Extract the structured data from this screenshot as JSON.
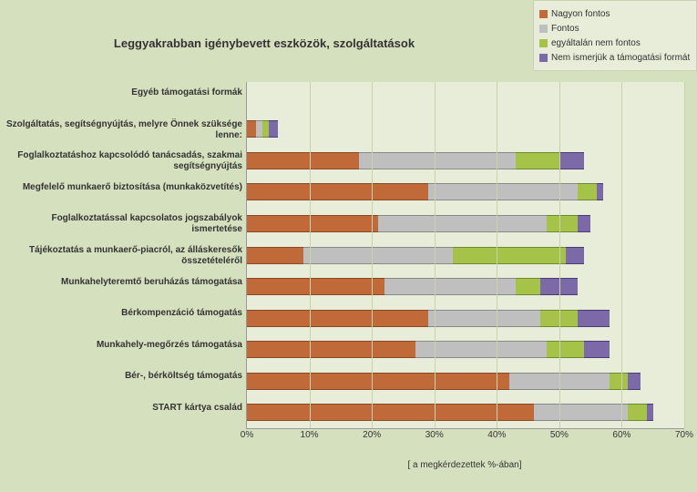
{
  "title": "Leggyakrabban igénybevett eszközök, szolgáltatások",
  "x_axis_title": "[ a megkérdezettek %-ában]",
  "plot": {
    "type": "stacked-bar-horizontal",
    "xlim": [
      0,
      70
    ],
    "xtick_step": 10,
    "xtick_suffix": "%",
    "background_color": "#e7edd9",
    "page_background_color": "#d5e0be",
    "grid_color": "#c8d3ae"
  },
  "series": [
    {
      "key": "nagyon_fontos",
      "label": "Nagyon fontos",
      "color": "#c06a3a"
    },
    {
      "key": "fontos",
      "label": "Fontos",
      "color": "#bfbfbf"
    },
    {
      "key": "nem_fontos",
      "label": "egyáltalán nem fontos",
      "color": "#a5c249"
    },
    {
      "key": "nem_ismerjuk",
      "label": "Nem ismerjük a támogatási formát",
      "color": "#7c6aa8"
    }
  ],
  "categories": [
    {
      "label": "Egyéb támogatási formák",
      "values": [
        0,
        0,
        0,
        0
      ]
    },
    {
      "label": "Szolgáltatás, segítségnyújtás, melyre Önnek szüksége lenne:",
      "values": [
        1.5,
        1.0,
        1.0,
        1.5
      ]
    },
    {
      "label": "Foglalkoztatáshoz kapcsolódó tanácsadás, szakmai segítségnyújtás",
      "values": [
        18,
        25,
        7,
        4
      ]
    },
    {
      "label": "Megfelelő munkaerő biztosítása (munkaközvetítés)",
      "values": [
        29,
        24,
        3,
        1
      ]
    },
    {
      "label": "Foglalkoztatással kapcsolatos jogszabályok ismertetése",
      "values": [
        21,
        27,
        5,
        2
      ]
    },
    {
      "label": "Tájékoztatás a munkaerő-piacról, az álláskeresők összetételéről",
      "values": [
        9,
        24,
        18,
        3
      ]
    },
    {
      "label": "Munkahelyteremtő beruházás támogatása",
      "values": [
        22,
        21,
        4,
        6
      ]
    },
    {
      "label": "Bérkompenzáció támogatás",
      "values": [
        29,
        18,
        6,
        5
      ]
    },
    {
      "label": "Munkahely-megőrzés támogatása",
      "values": [
        27,
        21,
        6,
        4
      ]
    },
    {
      "label": "Bér-, bérköltség támogatás",
      "values": [
        42,
        16,
        3,
        2
      ]
    },
    {
      "label": "START kártya család",
      "values": [
        46,
        15,
        3,
        1
      ]
    }
  ],
  "typography": {
    "title_fontsize": 13,
    "title_weight": "bold",
    "label_fontsize": 10,
    "label_weight": "bold",
    "tick_fontsize": 10,
    "legend_fontsize": 10
  }
}
